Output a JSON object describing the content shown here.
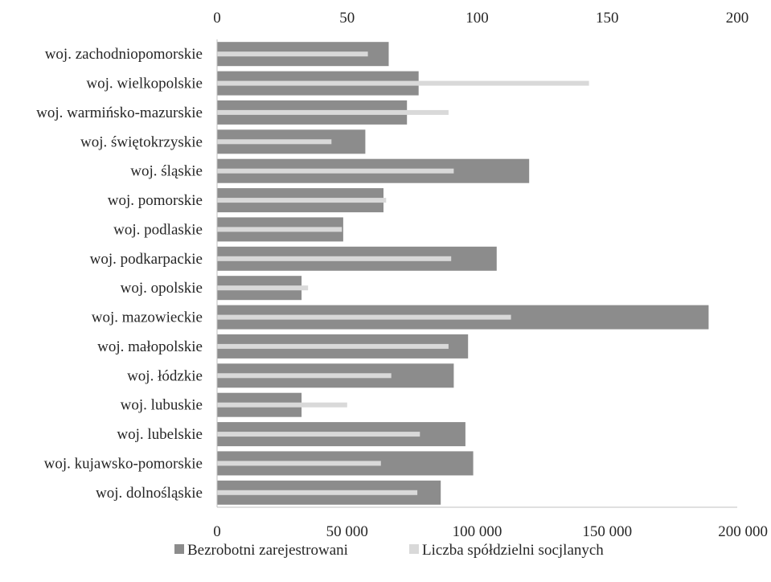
{
  "chart_data": {
    "type": "bar",
    "orientation": "horizontal",
    "categories": [
      "woj. zachodniopomorskie",
      "woj. wielkopolskie",
      "woj. warmińsko-mazurskie",
      "woj. świętokrzyskie",
      "woj. śląskie",
      "woj. pomorskie",
      "woj. podlaskie",
      "woj. podkarpackie",
      "woj. opolskie",
      "woj. mazowieckie",
      "woj. małopolskie",
      "woj. łódzkie",
      "woj. lubuskie",
      "woj. lubelskie",
      "woj. kujawsko-pomorskie",
      "woj. dolnośląskie"
    ],
    "series": [
      {
        "name": "Bezrobotni zarejestrowani",
        "axis": "bottom",
        "color": "#8c8c8c",
        "values": [
          66000,
          77500,
          73000,
          57000,
          120000,
          64000,
          48500,
          107500,
          32500,
          189000,
          96500,
          91000,
          32500,
          95500,
          98500,
          86000
        ]
      },
      {
        "name": "Liczba spółdzielni socjlanych",
        "axis": "top",
        "color": "#d9d9d9",
        "values": [
          58,
          143,
          89,
          44,
          91,
          65,
          48,
          90,
          35,
          113,
          89,
          67,
          50,
          78,
          63,
          77
        ]
      }
    ],
    "top_axis": {
      "min": 0,
      "max": 200,
      "ticks": [
        "0",
        "50",
        "100",
        "150",
        "200"
      ]
    },
    "bottom_axis": {
      "min": 0,
      "max": 200000,
      "ticks": [
        "0",
        "50 000",
        "100 000",
        "150 000",
        "200 000"
      ]
    },
    "grid": false,
    "legend_position": "bottom"
  },
  "legend": {
    "items": [
      "Bezrobotni zarejestrowani",
      "Liczba spółdzielni socjlanych"
    ]
  }
}
